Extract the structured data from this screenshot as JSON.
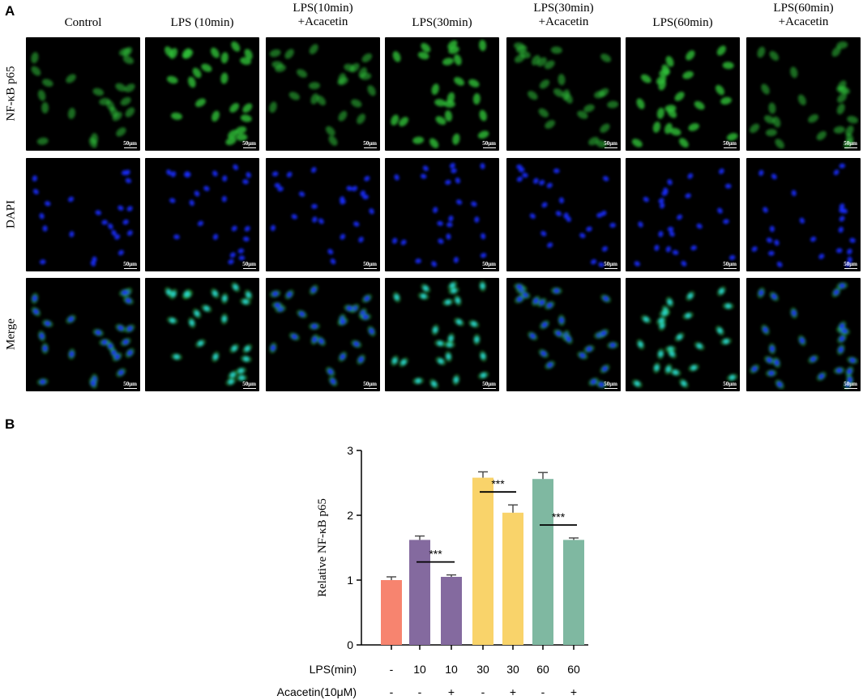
{
  "panel_a": {
    "letter": "A",
    "columns": [
      {
        "line1": "Control",
        "line2": ""
      },
      {
        "line1": "LPS (10min)",
        "line2": ""
      },
      {
        "line1": "LPS(10min)",
        "line2": "+Acacetin"
      },
      {
        "line1": "LPS(30min)",
        "line2": ""
      },
      {
        "line1": "LPS(30min)",
        "line2": "+Acacetin"
      },
      {
        "line1": "LPS(60min)",
        "line2": ""
      },
      {
        "line1": "LPS(60min)",
        "line2": "+Acacetin"
      }
    ],
    "rows": [
      {
        "label": "NF-κB p65",
        "stain": "green"
      },
      {
        "label": "DAPI",
        "stain": "blue"
      },
      {
        "label": "Merge",
        "stain": "merge"
      }
    ],
    "scale_bar": "50μm",
    "colors": {
      "green": "#2fc23a",
      "blue": "#1a2cff",
      "merge": "#28d6d0"
    }
  },
  "panel_b": {
    "letter": "B"
  },
  "chart_data": {
    "type": "bar",
    "ylabel": "Relative NF-κB p65",
    "ylim": [
      0,
      3
    ],
    "yticks": [
      "0",
      "1",
      "2",
      "3"
    ],
    "values": [
      1.0,
      1.62,
      1.05,
      2.58,
      2.04,
      2.56,
      1.62
    ],
    "errors": [
      0.05,
      0.06,
      0.03,
      0.09,
      0.12,
      0.1,
      0.03
    ],
    "bar_colors": [
      "#f7846f",
      "#846a9f",
      "#846a9f",
      "#f9d36a",
      "#f9d36a",
      "#7fb8a1",
      "#7fb8a1"
    ],
    "row_labels": {
      "lps": "LPS(min)",
      "acacetin": "Acacetin(10μM)"
    },
    "lps_values": [
      "-",
      "10",
      "10",
      "30",
      "30",
      "60",
      "60"
    ],
    "acacetin_values": [
      "-",
      "-",
      "+",
      "-",
      "+",
      "-",
      "+"
    ],
    "significance": [
      {
        "from": 1,
        "to": 2,
        "label": "***"
      },
      {
        "from": 3,
        "to": 4,
        "label": "***"
      },
      {
        "from": 5,
        "to": 6,
        "label": "***"
      }
    ]
  }
}
